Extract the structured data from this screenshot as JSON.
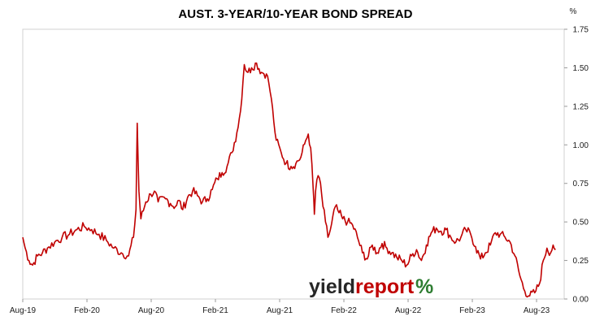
{
  "chart_data": {
    "type": "line",
    "title": "AUST. 3-YEAR/10-YEAR BOND SPREAD",
    "ylabel": "%",
    "xlabel": "",
    "ylim": [
      0,
      1.75
    ],
    "y_ticks": [
      "0.00",
      "0.25",
      "0.50",
      "0.75",
      "1.00",
      "1.25",
      "1.50",
      "1.75"
    ],
    "x_ticks": [
      "Aug-19",
      "Feb-20",
      "Aug-20",
      "Feb-21",
      "Aug-21",
      "Feb-22",
      "Aug-22",
      "Feb-23",
      "Aug-23"
    ],
    "grid": false,
    "axis_side": "right",
    "line_color": "#c00000",
    "series": [
      {
        "values": [
          [
            0.0,
            0.4
          ],
          [
            0.1,
            0.33
          ],
          [
            0.25,
            0.25
          ],
          [
            0.4,
            0.22
          ],
          [
            0.6,
            0.28
          ],
          [
            0.8,
            0.3
          ],
          [
            1.0,
            0.33
          ],
          [
            1.3,
            0.37
          ],
          [
            1.6,
            0.4
          ],
          [
            1.9,
            0.42
          ],
          [
            2.2,
            0.45
          ],
          [
            2.5,
            0.47
          ],
          [
            2.8,
            0.45
          ],
          [
            3.1,
            0.42
          ],
          [
            3.4,
            0.38
          ],
          [
            3.7,
            0.33
          ],
          [
            4.0,
            0.3
          ],
          [
            4.3,
            0.28
          ],
          [
            4.5,
            0.4
          ],
          [
            4.6,
            0.58
          ],
          [
            4.65,
            1.14
          ],
          [
            4.72,
            0.7
          ],
          [
            4.8,
            0.52
          ],
          [
            5.0,
            0.63
          ],
          [
            5.2,
            0.68
          ],
          [
            5.35,
            0.7
          ],
          [
            5.5,
            0.63
          ],
          [
            5.8,
            0.65
          ],
          [
            6.0,
            0.62
          ],
          [
            6.2,
            0.6
          ],
          [
            6.35,
            0.64
          ],
          [
            6.5,
            0.58
          ],
          [
            6.7,
            0.66
          ],
          [
            6.9,
            0.7
          ],
          [
            7.1,
            0.67
          ],
          [
            7.3,
            0.63
          ],
          [
            7.5,
            0.65
          ],
          [
            7.7,
            0.71
          ],
          [
            7.9,
            0.78
          ],
          [
            8.1,
            0.82
          ],
          [
            8.3,
            0.86
          ],
          [
            8.5,
            0.95
          ],
          [
            8.7,
            1.08
          ],
          [
            8.85,
            1.22
          ],
          [
            9.0,
            1.52
          ],
          [
            9.15,
            1.47
          ],
          [
            9.3,
            1.5
          ],
          [
            9.5,
            1.53
          ],
          [
            9.7,
            1.47
          ],
          [
            9.9,
            1.46
          ],
          [
            10.0,
            1.4
          ],
          [
            10.1,
            1.3
          ],
          [
            10.2,
            1.15
          ],
          [
            10.3,
            1.03
          ],
          [
            10.5,
            0.95
          ],
          [
            10.7,
            0.88
          ],
          [
            10.9,
            0.86
          ],
          [
            11.1,
            0.88
          ],
          [
            11.3,
            0.92
          ],
          [
            11.5,
            1.03
          ],
          [
            11.6,
            1.07
          ],
          [
            11.7,
            0.98
          ],
          [
            11.8,
            0.72
          ],
          [
            11.85,
            0.55
          ],
          [
            11.9,
            0.7
          ],
          [
            12.0,
            0.8
          ],
          [
            12.1,
            0.75
          ],
          [
            12.2,
            0.6
          ],
          [
            12.3,
            0.5
          ],
          [
            12.4,
            0.4
          ],
          [
            12.5,
            0.45
          ],
          [
            12.7,
            0.6
          ],
          [
            12.85,
            0.56
          ],
          [
            13.0,
            0.52
          ],
          [
            13.2,
            0.5
          ],
          [
            13.4,
            0.48
          ],
          [
            13.6,
            0.4
          ],
          [
            13.8,
            0.3
          ],
          [
            14.0,
            0.26
          ],
          [
            14.2,
            0.35
          ],
          [
            14.4,
            0.3
          ],
          [
            14.6,
            0.36
          ],
          [
            14.8,
            0.33
          ],
          [
            15.0,
            0.3
          ],
          [
            15.2,
            0.27
          ],
          [
            15.4,
            0.25
          ],
          [
            15.6,
            0.22
          ],
          [
            15.8,
            0.28
          ],
          [
            16.0,
            0.32
          ],
          [
            16.2,
            0.25
          ],
          [
            16.4,
            0.35
          ],
          [
            16.6,
            0.43
          ],
          [
            16.8,
            0.46
          ],
          [
            17.0,
            0.44
          ],
          [
            17.2,
            0.45
          ],
          [
            17.4,
            0.4
          ],
          [
            17.6,
            0.37
          ],
          [
            17.8,
            0.4
          ],
          [
            18.0,
            0.45
          ],
          [
            18.2,
            0.42
          ],
          [
            18.4,
            0.34
          ],
          [
            18.6,
            0.26
          ],
          [
            18.8,
            0.3
          ],
          [
            19.0,
            0.35
          ],
          [
            19.2,
            0.43
          ],
          [
            19.4,
            0.42
          ],
          [
            19.6,
            0.4
          ],
          [
            19.8,
            0.37
          ],
          [
            20.0,
            0.28
          ],
          [
            20.2,
            0.15
          ],
          [
            20.4,
            0.05
          ],
          [
            20.6,
            0.02
          ],
          [
            20.8,
            0.04
          ],
          [
            21.0,
            0.1
          ],
          [
            21.15,
            0.25
          ],
          [
            21.3,
            0.33
          ],
          [
            21.45,
            0.3
          ],
          [
            21.55,
            0.35
          ],
          [
            21.65,
            0.32
          ]
        ]
      }
    ],
    "x_domain": [
      0,
      22
    ]
  },
  "brand": {
    "word_dark": "yield",
    "word_red": "report",
    "symbol": "%",
    "color_dark": "#262626",
    "color_red": "#c00000",
    "color_green": "#2e7d32"
  }
}
